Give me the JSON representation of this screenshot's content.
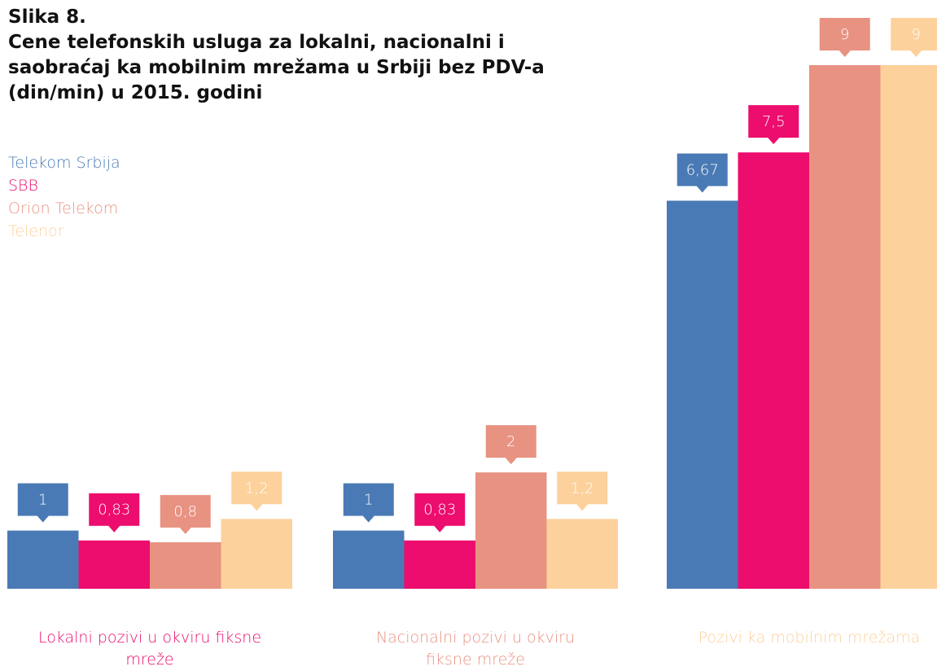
{
  "chart_data": {
    "type": "bar",
    "title": "Slika 8.",
    "subtitle": "Cene telefonskih usluga za lokalni,  nacionalni i saobraćaj ka  mobilnim mrežama u Srbiji bez PDV-a (din/min) u 2015. godini",
    "categories": [
      "Lokalni pozivi u okviru fiksne mreže",
      "Nacionalni pozivi u okviru fiksne mreže",
      "Pozivi ka mobilnim mrežama"
    ],
    "category_label_colors": [
      "#ec0d6e",
      "#e89282",
      "#fdd19c"
    ],
    "series": [
      {
        "name": "Telekom Srbija",
        "color": "#4a7ab5",
        "values": [
          1,
          1,
          6.67
        ],
        "value_labels": [
          "1",
          "1",
          "6,67"
        ]
      },
      {
        "name": "SBB",
        "color": "#ec0d6e",
        "values": [
          0.83,
          0.83,
          7.5
        ],
        "value_labels": [
          "0,83",
          "0,83",
          "7,5"
        ]
      },
      {
        "name": "Orion Telekom",
        "color": "#e89282",
        "values": [
          0.8,
          2,
          9
        ],
        "value_labels": [
          "0,8",
          "2",
          "9"
        ]
      },
      {
        "name": "Telenor",
        "color": "#fdd19c",
        "values": [
          1.2,
          1.2,
          9
        ],
        "value_labels": [
          "1,2",
          "1,2",
          "9"
        ]
      }
    ]
  }
}
